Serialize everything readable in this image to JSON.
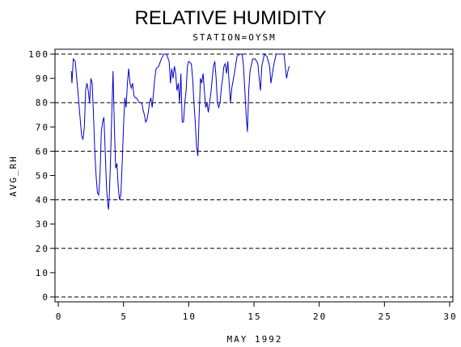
{
  "chart_data": {
    "type": "line",
    "title": "RELATIVE HUMIDITY",
    "subtitle": "STATION=OYSM",
    "x_label": "MAY 1992",
    "y_label": "AVG_RH",
    "x": [
      1.0,
      1.05,
      1.15,
      1.3,
      1.5,
      1.7,
      1.8,
      1.9,
      2.0,
      2.1,
      2.2,
      2.3,
      2.4,
      2.5,
      2.6,
      2.7,
      2.8,
      2.9,
      3.0,
      3.1,
      3.2,
      3.3,
      3.4,
      3.5,
      3.6,
      3.7,
      3.8,
      3.85,
      3.9,
      4.0,
      4.1,
      4.2,
      4.3,
      4.4,
      4.5,
      4.6,
      4.7,
      4.8,
      4.9,
      5.0,
      5.1,
      5.2,
      5.3,
      5.4,
      5.5,
      5.6,
      5.7,
      5.8,
      5.9,
      6.0,
      6.2,
      6.4,
      6.5,
      6.6,
      6.7,
      6.8,
      6.9,
      7.0,
      7.1,
      7.2,
      7.3,
      7.4,
      7.5,
      7.7,
      7.9,
      8.1,
      8.3,
      8.5,
      8.6,
      8.7,
      8.8,
      8.9,
      9.0,
      9.1,
      9.2,
      9.3,
      9.4,
      9.5,
      9.6,
      9.7,
      9.8,
      9.9,
      10.0,
      10.2,
      10.3,
      10.4,
      10.5,
      10.6,
      10.7,
      10.8,
      10.9,
      11.0,
      11.1,
      11.2,
      11.3,
      11.4,
      11.5,
      11.6,
      11.7,
      11.8,
      11.9,
      12.0,
      12.1,
      12.2,
      12.3,
      12.4,
      12.5,
      12.6,
      12.7,
      12.8,
      12.9,
      13.0,
      13.1,
      13.2,
      13.3,
      13.5,
      13.7,
      13.9,
      14.1,
      14.2,
      14.3,
      14.4,
      14.5,
      14.6,
      14.7,
      14.9,
      15.1,
      15.3,
      15.4,
      15.5,
      15.6,
      15.8,
      16.0,
      16.2,
      16.3,
      16.5,
      16.7,
      17.0,
      17.3,
      17.5,
      17.6,
      17.7
    ],
    "series": [
      {
        "name": "AVG_RH",
        "color": "#0000cc",
        "values": [
          93,
          88,
          98,
          97,
          85,
          72,
          66,
          65,
          70,
          85,
          88,
          85,
          80,
          90,
          88,
          75,
          60,
          50,
          43,
          42,
          50,
          68,
          72,
          74,
          60,
          45,
          38,
          36,
          40,
          55,
          75,
          93,
          70,
          53,
          55,
          45,
          40,
          42,
          55,
          70,
          82,
          78,
          88,
          94,
          88,
          86,
          88,
          83,
          82,
          82,
          80,
          80,
          77,
          75,
          72,
          73,
          76,
          80,
          82,
          78,
          84,
          90,
          94,
          95,
          98,
          100,
          100,
          97,
          88,
          94,
          90,
          95,
          92,
          85,
          88,
          80,
          92,
          72,
          72,
          80,
          85,
          95,
          97,
          96,
          90,
          80,
          72,
          62,
          58,
          75,
          90,
          88,
          92,
          85,
          78,
          80,
          76,
          80,
          84,
          90,
          95,
          97,
          90,
          80,
          78,
          80,
          86,
          90,
          95,
          96,
          92,
          97,
          88,
          80,
          86,
          92,
          99,
          100,
          100,
          95,
          85,
          75,
          68,
          85,
          93,
          98,
          98,
          96,
          90,
          85,
          95,
          100,
          99,
          95,
          88,
          95,
          100,
          100,
          100,
          90,
          93,
          95
        ]
      }
    ],
    "xlim": [
      -0.25,
      30.25
    ],
    "ylim": [
      -2,
      102
    ],
    "xticks": [
      0,
      5,
      10,
      15,
      20,
      25,
      30
    ],
    "yticks": [
      0,
      10,
      20,
      30,
      40,
      50,
      60,
      70,
      80,
      90,
      100
    ],
    "grid_lines": [
      0,
      20,
      40,
      60,
      80,
      100
    ]
  }
}
